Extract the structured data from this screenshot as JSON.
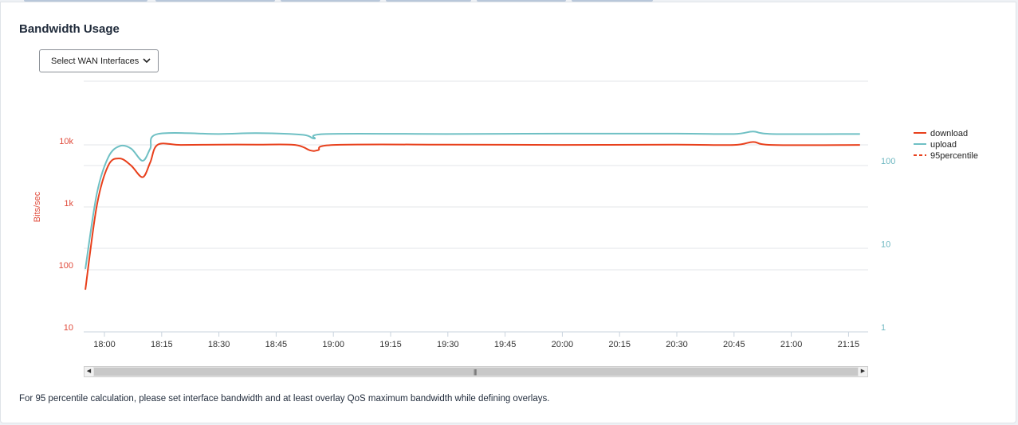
{
  "header": {
    "title": "Bandwidth Usage"
  },
  "interface_select": {
    "value": "Select WAN Interfaces"
  },
  "footnote": "For 95 percentile calculation, please set interface bandwidth and at least overlay QoS maximum bandwidth while defining overlays.",
  "colors": {
    "download": "#e8401c",
    "upload": "#6fc0c4",
    "percentile": "#e8401c",
    "left_axis": "#e04a3a",
    "right_axis": "#6fb8c2"
  },
  "chart_data": {
    "type": "line",
    "ylabel": "Bits/sec",
    "y_left": {
      "scale": "log",
      "ticks": [
        "10",
        "100",
        "1k",
        "10k"
      ]
    },
    "y_right": {
      "scale": "log",
      "ticks": [
        "1",
        "10",
        "100"
      ]
    },
    "x_ticks": [
      "18:00",
      "18:15",
      "18:30",
      "18:45",
      "19:00",
      "19:15",
      "19:30",
      "19:45",
      "20:00",
      "20:15",
      "20:30",
      "20:45",
      "21:00",
      "21:15"
    ],
    "legend": [
      "download",
      "upload",
      "95percentile"
    ],
    "legend_position": "right",
    "series": [
      {
        "name": "download",
        "axis": "left",
        "points": [
          [
            "17:55",
            40
          ],
          [
            "17:58",
            900
          ],
          [
            "18:01",
            4000
          ],
          [
            "18:04",
            5200
          ],
          [
            "18:07",
            4000
          ],
          [
            "18:10",
            2600
          ],
          [
            "18:12",
            4500
          ],
          [
            "18:14",
            8700
          ],
          [
            "18:20",
            8600
          ],
          [
            "18:30",
            8700
          ],
          [
            "18:40",
            8700
          ],
          [
            "18:50",
            8600
          ],
          [
            "18:54",
            7000
          ],
          [
            "18:56",
            7100
          ],
          [
            "19:00",
            8600
          ],
          [
            "19:30",
            8700
          ],
          [
            "20:00",
            8600
          ],
          [
            "20:30",
            8700
          ],
          [
            "20:45",
            8600
          ],
          [
            "20:50",
            9600
          ],
          [
            "20:55",
            8600
          ],
          [
            "21:18",
            8600
          ]
        ]
      },
      {
        "name": "upload",
        "axis": "right",
        "points": [
          [
            "17:55",
            5
          ],
          [
            "17:58",
            40
          ],
          [
            "18:01",
            110
          ],
          [
            "18:04",
            150
          ],
          [
            "18:07",
            140
          ],
          [
            "18:10",
            100
          ],
          [
            "18:12",
            140
          ],
          [
            "18:14",
            210
          ],
          [
            "18:30",
            210
          ],
          [
            "18:40",
            215
          ],
          [
            "18:52",
            205
          ],
          [
            "18:55",
            185
          ],
          [
            "18:58",
            210
          ],
          [
            "19:30",
            210
          ],
          [
            "20:00",
            212
          ],
          [
            "20:30",
            212
          ],
          [
            "20:45",
            210
          ],
          [
            "20:50",
            225
          ],
          [
            "20:55",
            210
          ],
          [
            "21:18",
            210
          ]
        ]
      }
    ]
  }
}
